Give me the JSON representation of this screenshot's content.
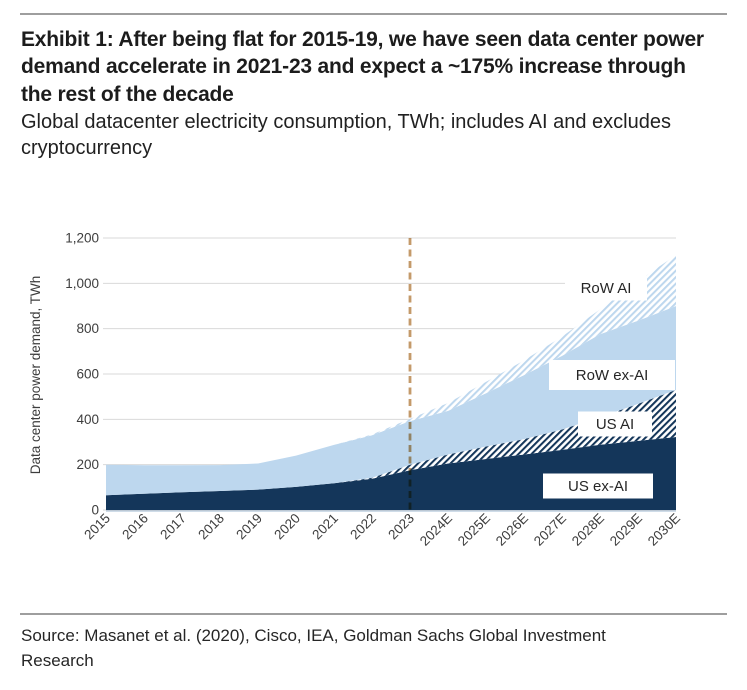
{
  "page": {
    "title": "Exhibit 1: After being flat for 2015-19, we have seen data center power demand accelerate in 2021-23 and expect a ~175% increase through the rest of the decade",
    "subtitle": "Global datacenter electricity consumption, TWh; includes AI and excludes cryptocurrency",
    "source": "Source: Masanet et al. (2020), Cisco, IEA, Goldman Sachs Global Investment Research"
  },
  "chart_data": {
    "type": "area",
    "stacked": true,
    "ylabel": "Data center power demand, TWh",
    "ylim": [
      0,
      1200
    ],
    "ytick_step": 200,
    "yticks": [
      "0",
      "200",
      "400",
      "600",
      "800",
      "1,000",
      "1,200"
    ],
    "grid": true,
    "categories": [
      "2015",
      "2016",
      "2017",
      "2018",
      "2019",
      "2020",
      "2021",
      "2022",
      "2023",
      "2024E",
      "2025E",
      "2026E",
      "2027E",
      "2028E",
      "2029E",
      "2030E"
    ],
    "series": [
      {
        "name": "US ex-AI",
        "style": "solid",
        "color": "#14365A",
        "values": [
          65,
          72,
          78,
          84,
          90,
          102,
          118,
          138,
          175,
          205,
          225,
          245,
          265,
          288,
          305,
          322
        ]
      },
      {
        "name": "US AI",
        "style": "hatch",
        "color": "#14365A",
        "values": [
          0,
          0,
          0,
          0,
          0,
          0,
          0,
          4,
          25,
          40,
          55,
          68,
          90,
          122,
          163,
          208
        ]
      },
      {
        "name": "RoW ex-AI",
        "style": "solid",
        "color": "#BDD7EE",
        "values": [
          135,
          125,
          119,
          114,
          115,
          138,
          169,
          188,
          192,
          192,
          235,
          282,
          325,
          365,
          367,
          370
        ]
      },
      {
        "name": "RoW AI",
        "style": "hatch",
        "color": "#BDD7EE",
        "values": [
          0,
          0,
          0,
          0,
          0,
          0,
          0,
          3,
          10,
          35,
          50,
          65,
          85,
          110,
          175,
          225
        ]
      }
    ],
    "forecast_divider": {
      "at_category": "2023",
      "color": "#C49A6A",
      "style": "dashed"
    },
    "annotations": [
      {
        "label": "RoW AI",
        "cx": 606,
        "cy": 78,
        "w": 82,
        "h": 25
      },
      {
        "label": "RoW ex-AI",
        "cx": 612,
        "cy": 165,
        "w": 126,
        "h": 30
      },
      {
        "label": "US AI",
        "cx": 615,
        "cy": 214,
        "w": 74,
        "h": 25
      },
      {
        "label": "US ex-AI",
        "cx": 598,
        "cy": 276,
        "w": 110,
        "h": 25
      }
    ],
    "colors": {
      "grid": "#d9d9d9",
      "tick_text": "#3d3d3d",
      "annotation_text": "#262626",
      "baseline": "#9fb8d0",
      "hatch_background": "#ffffff"
    }
  }
}
